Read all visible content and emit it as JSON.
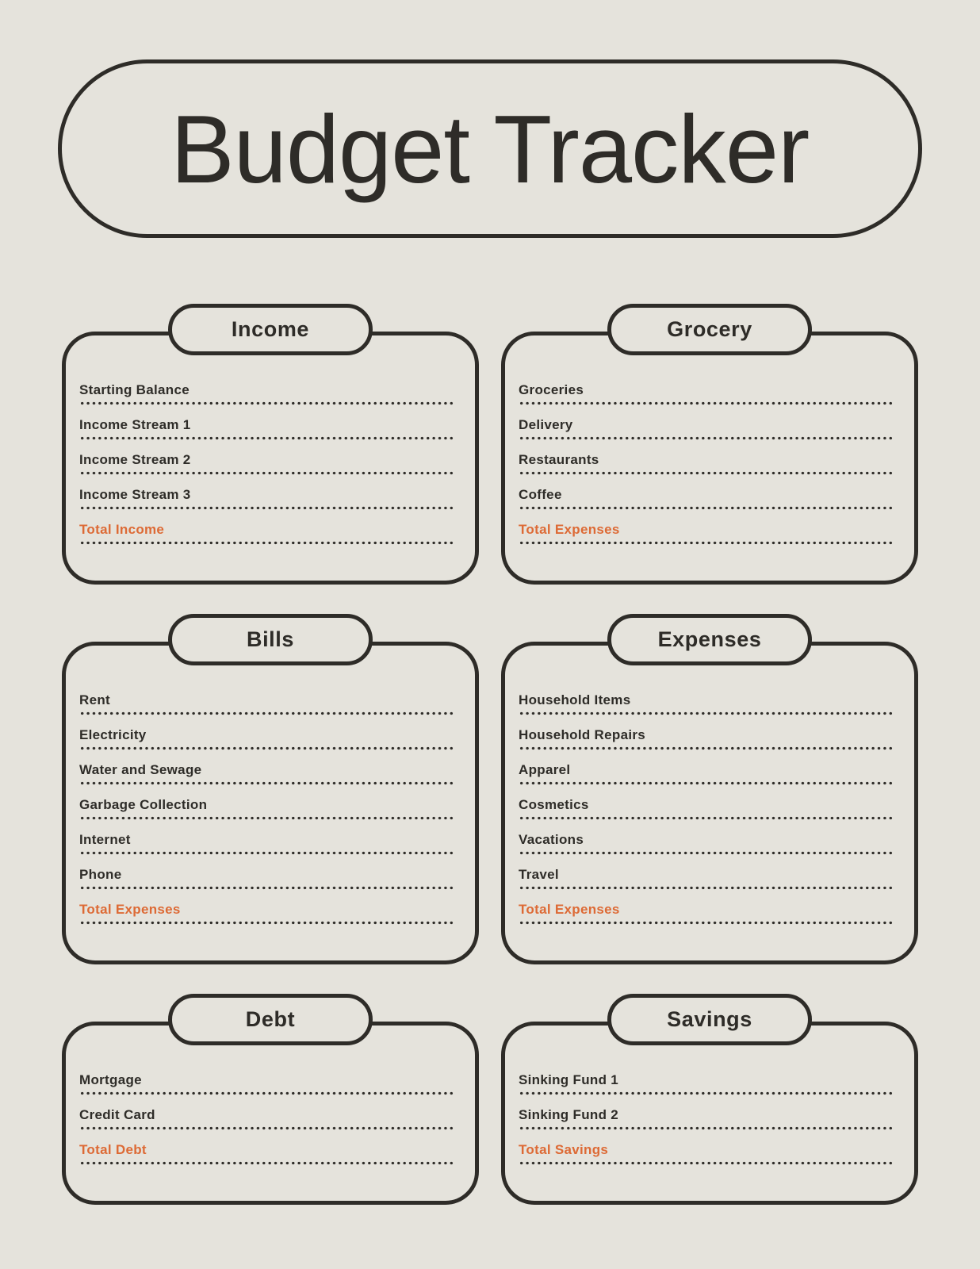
{
  "page": {
    "title": "Budget Tracker",
    "colors": {
      "background": "#e5e3dc",
      "ink": "#2e2c28",
      "accent": "#dd6a35"
    }
  },
  "sections": [
    {
      "id": "income",
      "title": "Income",
      "items": [
        {
          "label": "Starting Balance",
          "is_total": false
        },
        {
          "label": "Income Stream 1",
          "is_total": false
        },
        {
          "label": "Income Stream 2",
          "is_total": false
        },
        {
          "label": "Income Stream 3",
          "is_total": false
        },
        {
          "label": "Total Income",
          "is_total": true
        }
      ]
    },
    {
      "id": "grocery",
      "title": "Grocery",
      "items": [
        {
          "label": "Groceries",
          "is_total": false
        },
        {
          "label": "Delivery",
          "is_total": false
        },
        {
          "label": "Restaurants",
          "is_total": false
        },
        {
          "label": "Coffee",
          "is_total": false
        },
        {
          "label": "Total Expenses",
          "is_total": true
        }
      ]
    },
    {
      "id": "bills",
      "title": "Bills",
      "items": [
        {
          "label": "Rent",
          "is_total": false
        },
        {
          "label": "Electricity",
          "is_total": false
        },
        {
          "label": "Water and Sewage",
          "is_total": false
        },
        {
          "label": "Garbage Collection",
          "is_total": false
        },
        {
          "label": "Internet",
          "is_total": false
        },
        {
          "label": "Phone",
          "is_total": false
        },
        {
          "label": "Total Expenses",
          "is_total": true
        }
      ]
    },
    {
      "id": "expenses",
      "title": "Expenses",
      "items": [
        {
          "label": "Household Items",
          "is_total": false
        },
        {
          "label": "Household Repairs",
          "is_total": false
        },
        {
          "label": "Apparel",
          "is_total": false
        },
        {
          "label": "Cosmetics",
          "is_total": false
        },
        {
          "label": "Vacations",
          "is_total": false
        },
        {
          "label": "Travel",
          "is_total": false
        },
        {
          "label": "Total Expenses",
          "is_total": true
        }
      ]
    },
    {
      "id": "debt",
      "title": "Debt",
      "items": [
        {
          "label": "Mortgage",
          "is_total": false
        },
        {
          "label": "Credit Card",
          "is_total": false
        },
        {
          "label": "Total Debt",
          "is_total": true
        }
      ]
    },
    {
      "id": "savings",
      "title": "Savings",
      "items": [
        {
          "label": "Sinking Fund 1",
          "is_total": false
        },
        {
          "label": "Sinking Fund 2",
          "is_total": false
        },
        {
          "label": "Total Savings",
          "is_total": true
        }
      ]
    }
  ]
}
